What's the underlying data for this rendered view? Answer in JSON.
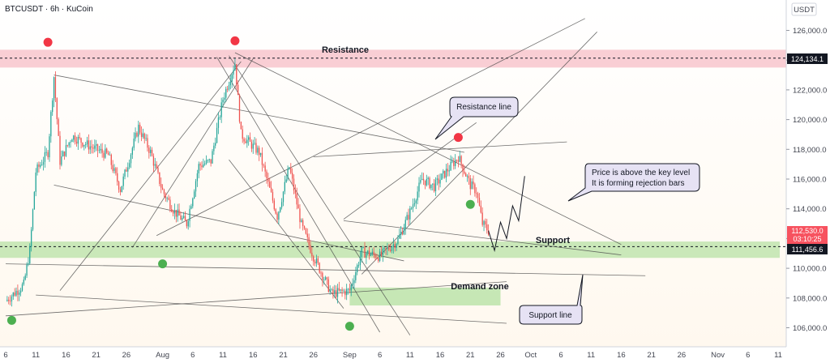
{
  "header": {
    "symbol": "BTCUSDT",
    "interval": "6h",
    "exchange": "KuCoin",
    "separator": " · "
  },
  "currency_label": "USDT",
  "labels": {
    "resistance": "Resistance",
    "support": "Support",
    "demand_zone": "Demand zone"
  },
  "callouts": {
    "resistance_line": "Resistance line",
    "support_line": "Support line",
    "price_note_line1": "Price is above the key level",
    "price_note_line2": "It is forming rejection bars"
  },
  "price_tags": {
    "resistance": "124,134.1",
    "current": "112,530.0",
    "countdown": "03:10:25",
    "support": "111,456.6"
  },
  "colors": {
    "up": "#26a69a",
    "down": "#ef5350",
    "resistance_zone": "#f8c6cc",
    "support_zone": "#b8e2a6",
    "demand_zone": "#b8e2a6",
    "trendline": "#4a4a4a",
    "marker_red": "#f23645",
    "marker_green": "#4caf50",
    "tag_dark": "#131722",
    "callout_fill": "#e6e2f4"
  },
  "chart_data": {
    "type": "candlestick",
    "title": "BTCUSDT · 6h · KuCoin",
    "ylim": [
      105000,
      127000
    ],
    "y_ticks": [
      106000,
      108000,
      110000,
      112000,
      114000,
      116000,
      118000,
      120000,
      122000,
      124000,
      126000
    ],
    "x_ticks": [
      "6",
      "11",
      "16",
      "21",
      "26",
      "Aug",
      "6",
      "11",
      "16",
      "21",
      "26",
      "Sep",
      "6",
      "11",
      "16",
      "21",
      "26",
      "Oct",
      "6",
      "11",
      "16",
      "21",
      "26",
      "Nov",
      "6",
      "11"
    ],
    "x_range": [
      "2025-07-06",
      "2025-11-11"
    ],
    "resistance_level": 124134.1,
    "support_level": 111456.6,
    "current_price": 112530.0,
    "resistance_zone": [
      123500,
      124700
    ],
    "support_zone": [
      110700,
      111800
    ],
    "demand_zone": {
      "x": [
        "2025-09-01",
        "2025-09-26"
      ],
      "y": [
        107500,
        108700
      ]
    },
    "path": [
      [
        "2025-07-06",
        107800
      ],
      [
        "2025-07-09",
        108900
      ],
      [
        "2025-07-10",
        111200
      ],
      [
        "2025-07-11",
        116500
      ],
      [
        "2025-07-13",
        117800
      ],
      [
        "2025-07-14",
        122900
      ],
      [
        "2025-07-15",
        117200
      ],
      [
        "2025-07-17",
        118900
      ],
      [
        "2025-07-20",
        118200
      ],
      [
        "2025-07-23",
        117600
      ],
      [
        "2025-07-25",
        115300
      ],
      [
        "2025-07-28",
        119500
      ],
      [
        "2025-07-30",
        117800
      ],
      [
        "2025-08-01",
        115200
      ],
      [
        "2025-08-03",
        113800
      ],
      [
        "2025-08-05",
        113000
      ],
      [
        "2025-08-07",
        116900
      ],
      [
        "2025-08-09",
        117200
      ],
      [
        "2025-08-11",
        121400
      ],
      [
        "2025-08-13",
        123800
      ],
      [
        "2025-08-14",
        119000
      ],
      [
        "2025-08-17",
        117800
      ],
      [
        "2025-08-20",
        113500
      ],
      [
        "2025-08-22",
        116800
      ],
      [
        "2025-08-24",
        112900
      ],
      [
        "2025-08-26",
        110800
      ],
      [
        "2025-08-29",
        108300
      ],
      [
        "2025-09-01",
        108500
      ],
      [
        "2025-09-03",
        111100
      ],
      [
        "2025-09-06",
        110800
      ],
      [
        "2025-09-09",
        111900
      ],
      [
        "2025-09-11",
        113800
      ],
      [
        "2025-09-13",
        116000
      ],
      [
        "2025-09-15",
        115500
      ],
      [
        "2025-09-17",
        116500
      ],
      [
        "2025-09-19",
        117500
      ],
      [
        "2025-09-21",
        115600
      ],
      [
        "2025-09-22",
        115200
      ],
      [
        "2025-09-23",
        113000
      ],
      [
        "2025-09-24",
        112530
      ]
    ],
    "markers": {
      "tops": [
        [
          "2025-07-13",
          125200
        ],
        [
          "2025-08-13",
          125300
        ],
        [
          "2025-09-19",
          118800
        ]
      ],
      "bottoms": [
        [
          "2025-07-07",
          106500
        ],
        [
          "2025-08-01",
          110300
        ],
        [
          "2025-09-01",
          106100
        ],
        [
          "2025-09-21",
          114300
        ]
      ]
    },
    "trendlines": [
      {
        "from": [
          "2025-07-14",
          123000
        ],
        "to": [
          "2025-09-20",
          117800
        ]
      },
      {
        "from": [
          "2025-08-13",
          124500
        ],
        "to": [
          "2025-10-16",
          111600
        ]
      },
      {
        "from": [
          "2025-07-06",
          110300
        ],
        "to": [
          "2025-10-20",
          109500
        ]
      },
      {
        "from": [
          "2025-07-11",
          108200
        ],
        "to": [
          "2025-09-27",
          106300
        ]
      },
      {
        "from": [
          "2025-07-14",
          115600
        ],
        "to": [
          "2025-09-10",
          110500
        ]
      },
      {
        "from": [
          "2025-08-26",
          117500
        ],
        "to": [
          "2025-10-07",
          118500
        ]
      },
      {
        "from": [
          "2025-08-31",
          113200
        ],
        "to": [
          "2025-10-16",
          110900
        ]
      },
      {
        "from": [
          "2025-08-31",
          113300
        ],
        "to": [
          "2025-09-22",
          119800
        ]
      },
      {
        "from": [
          "2025-08-10",
          124200
        ],
        "to": [
          "2025-09-06",
          105700
        ]
      },
      {
        "from": [
          "2025-08-12",
          124300
        ],
        "to": [
          "2025-09-11",
          105500
        ]
      },
      {
        "from": [
          "2025-08-12",
          117300
        ],
        "to": [
          "2025-08-31",
          107300
        ]
      },
      {
        "from": [
          "2025-07-31",
          112200
        ],
        "to": [
          "2025-10-10",
          126800
        ]
      },
      {
        "from": [
          "2025-07-15",
          108500
        ],
        "to": [
          "2025-08-14",
          123900
        ]
      },
      {
        "from": [
          "2025-07-27",
          111400
        ],
        "to": [
          "2025-08-16",
          124100
        ]
      },
      {
        "from": [
          "2025-09-03",
          109600
        ],
        "to": [
          "2025-10-12",
          125900
        ]
      },
      {
        "from": [
          "2025-07-06",
          106800
        ],
        "to": [
          "2025-09-27",
          109100
        ]
      }
    ],
    "projection": [
      [
        "2025-09-24",
        112530
      ],
      [
        "2025-09-25",
        111200
      ],
      [
        "2025-09-26",
        113100
      ],
      [
        "2025-09-27",
        112000
      ],
      [
        "2025-09-28",
        114200
      ],
      [
        "2025-09-29",
        113200
      ],
      [
        "2025-09-30",
        116200
      ]
    ]
  }
}
